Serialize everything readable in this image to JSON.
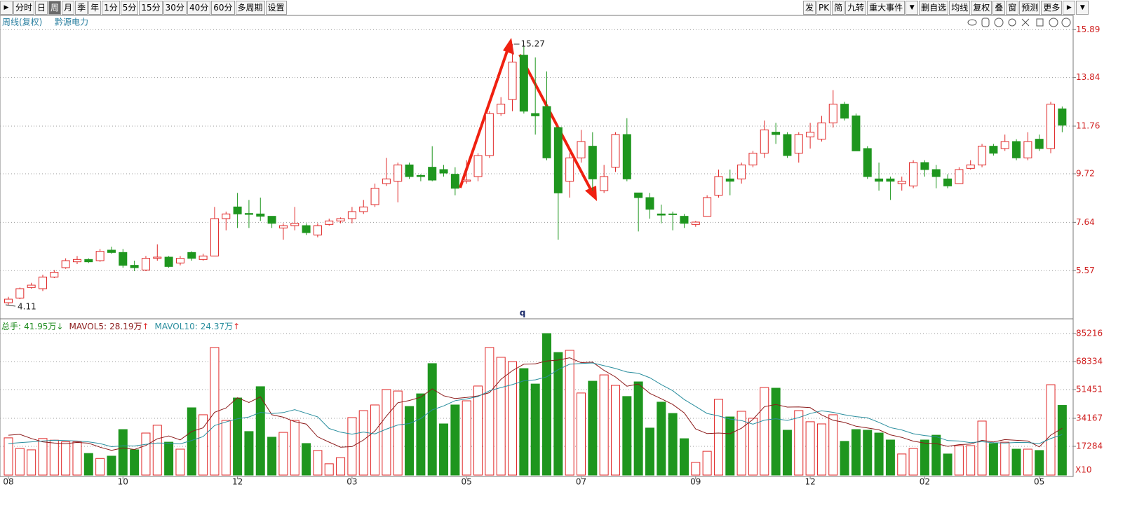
{
  "toolbar": {
    "left": [
      "分时",
      "日",
      "周",
      "月",
      "季",
      "年",
      "1分",
      "5分",
      "15分",
      "30分",
      "40分",
      "60分",
      "多周期",
      "设置"
    ],
    "selected": 2,
    "right": [
      "发",
      "PK",
      "简",
      "九转",
      "重大事件",
      "删自选",
      "均线",
      "复权",
      "叠",
      "窗",
      "预测",
      "更多"
    ]
  },
  "header": {
    "period": "周线(复权)",
    "stock": "黔源电力"
  },
  "chart_data": [
    {
      "type": "candlestick",
      "up_color": "#e02828",
      "down_color": "#1e961e",
      "ylim": [
        3.6,
        16.5
      ],
      "yticks": [
        5.57,
        7.64,
        9.72,
        11.76,
        13.84,
        15.89
      ],
      "grid": true,
      "annotations": [
        "q"
      ],
      "open": [
        4.2,
        4.4,
        4.85,
        4.8,
        5.3,
        5.7,
        5.95,
        6.05,
        6.0,
        6.45,
        6.35,
        5.8,
        5.6,
        6.1,
        6.15,
        5.9,
        6.35,
        6.05,
        6.2,
        7.8,
        8.3,
        8.02,
        8.0,
        7.9,
        7.4,
        7.5,
        7.5,
        7.1,
        7.55,
        7.7,
        7.8,
        8.1,
        8.4,
        9.3,
        9.4,
        10.1,
        9.65,
        10.0,
        9.9,
        9.7,
        9.4,
        9.6,
        10.5,
        12.3,
        12.9,
        14.8,
        12.3,
        12.6,
        11.7,
        9.4,
        10.4,
        10.9,
        9.0,
        10.0,
        11.4,
        8.9,
        8.7,
        8.0,
        8.0,
        7.9,
        7.55,
        7.9,
        8.8,
        9.5,
        9.5,
        10.1,
        10.6,
        11.5,
        11.4,
        10.6,
        11.3,
        11.2,
        11.9,
        12.7,
        12.2,
        10.8,
        9.5,
        9.5,
        9.3,
        9.2,
        10.2,
        9.9,
        9.5,
        9.3,
        9.95,
        10.1,
        10.9,
        10.8,
        11.1,
        10.4,
        11.2,
        10.8,
        12.5
      ],
      "high": [
        4.45,
        4.85,
        5.05,
        5.4,
        5.6,
        6.1,
        6.2,
        6.1,
        6.5,
        6.6,
        6.5,
        6.0,
        6.2,
        6.7,
        6.2,
        6.2,
        6.4,
        6.3,
        8.3,
        8.1,
        8.9,
        8.6,
        8.7,
        7.9,
        7.6,
        8.3,
        7.6,
        7.6,
        7.8,
        7.85,
        8.3,
        8.6,
        9.3,
        10.4,
        10.2,
        10.2,
        9.7,
        10.9,
        10.1,
        10.0,
        10.3,
        10.6,
        12.4,
        13.0,
        15.27,
        15.2,
        14.7,
        14.1,
        11.7,
        10.6,
        11.6,
        11.5,
        10.1,
        11.5,
        12.1,
        8.9,
        8.9,
        8.4,
        8.1,
        8.0,
        7.7,
        8.8,
        9.9,
        9.9,
        10.2,
        10.7,
        12.0,
        11.9,
        11.5,
        11.5,
        11.9,
        12.2,
        13.3,
        12.8,
        12.3,
        10.9,
        10.2,
        9.6,
        9.6,
        10.3,
        10.3,
        10.1,
        9.7,
        10.0,
        10.3,
        11.0,
        11.0,
        11.4,
        11.2,
        11.5,
        11.4,
        12.8,
        12.6
      ],
      "low": [
        4.11,
        4.35,
        4.8,
        4.7,
        5.25,
        5.65,
        5.85,
        5.9,
        5.95,
        6.3,
        5.7,
        5.55,
        5.55,
        6.0,
        5.7,
        5.8,
        6.0,
        6.0,
        6.2,
        7.3,
        7.4,
        7.4,
        7.7,
        7.4,
        6.9,
        7.3,
        7.1,
        7.0,
        7.5,
        7.6,
        7.6,
        8.0,
        8.3,
        9.2,
        8.5,
        9.5,
        9.4,
        9.4,
        9.6,
        8.8,
        9.3,
        9.4,
        10.4,
        12.2,
        12.4,
        12.3,
        11.4,
        10.3,
        6.9,
        8.7,
        10.2,
        9.0,
        8.9,
        9.8,
        9.4,
        7.25,
        7.8,
        7.6,
        7.3,
        7.4,
        7.45,
        7.9,
        8.7,
        8.8,
        9.3,
        10.0,
        10.4,
        11.0,
        10.4,
        10.2,
        10.8,
        11.1,
        11.7,
        12.0,
        10.7,
        9.5,
        9.0,
        8.6,
        9.0,
        9.1,
        9.6,
        9.1,
        9.1,
        9.3,
        9.9,
        10.0,
        10.5,
        10.7,
        10.3,
        10.3,
        10.7,
        10.6,
        11.5
      ],
      "close": [
        4.35,
        4.8,
        4.95,
        5.3,
        5.5,
        6.0,
        6.05,
        5.95,
        6.4,
        6.35,
        5.8,
        5.7,
        6.1,
        6.15,
        5.75,
        6.1,
        6.1,
        6.2,
        7.8,
        8.0,
        8.0,
        7.98,
        7.9,
        7.6,
        7.5,
        7.6,
        7.2,
        7.5,
        7.7,
        7.8,
        8.1,
        8.3,
        9.1,
        9.5,
        10.1,
        9.6,
        9.6,
        9.45,
        9.75,
        9.1,
        9.45,
        10.5,
        12.3,
        12.7,
        14.5,
        12.4,
        12.2,
        10.4,
        8.9,
        10.4,
        11.1,
        9.5,
        9.6,
        11.4,
        9.5,
        8.7,
        8.2,
        7.95,
        7.98,
        7.6,
        7.65,
        8.7,
        9.6,
        9.4,
        10.1,
        10.6,
        11.6,
        11.4,
        10.5,
        11.4,
        11.5,
        11.9,
        12.7,
        12.1,
        10.7,
        9.6,
        9.4,
        9.4,
        9.4,
        10.2,
        9.9,
        9.6,
        9.2,
        9.9,
        10.1,
        10.9,
        10.6,
        11.1,
        10.4,
        11.1,
        10.8,
        12.7,
        11.8
      ]
    },
    {
      "type": "bar",
      "ylim": [
        0,
        92800
      ],
      "yticks": [
        17284,
        34167,
        51451,
        68334,
        85216
      ],
      "grid": true,
      "unit_note": "X10",
      "categories": [
        "08",
        null,
        null,
        null,
        null,
        null,
        null,
        null,
        null,
        null,
        "10",
        null,
        null,
        null,
        null,
        null,
        null,
        null,
        null,
        null,
        "12",
        null,
        null,
        null,
        null,
        null,
        null,
        null,
        null,
        null,
        "03",
        null,
        null,
        null,
        null,
        null,
        null,
        null,
        null,
        null,
        "05",
        null,
        null,
        null,
        null,
        null,
        null,
        null,
        null,
        null,
        "07",
        null,
        null,
        null,
        null,
        null,
        null,
        null,
        null,
        null,
        "09",
        null,
        null,
        null,
        null,
        null,
        null,
        null,
        null,
        null,
        "12",
        null,
        null,
        null,
        null,
        null,
        null,
        null,
        null,
        null,
        "02",
        null,
        null,
        null,
        null,
        null,
        null,
        null,
        null,
        null,
        "05",
        null,
        null
      ],
      "series": [
        {
          "name": "总手",
          "label": "41.95万",
          "trend": "↓",
          "color": "#1e8c1e",
          "type": "bar",
          "values": [
            22400,
            16000,
            15200,
            22000,
            21000,
            20000,
            20000,
            13000,
            10000,
            11400,
            27400,
            15200,
            25300,
            30000,
            19800,
            15600,
            40500,
            36300,
            76800,
            32900,
            46400,
            26200,
            53200,
            22800,
            25700,
            32900,
            19000,
            14800,
            6800,
            10500,
            34600,
            38800,
            42200,
            51500,
            50600,
            41300,
            48900,
            67100,
            30800,
            42200,
            44700,
            53600,
            76800,
            70900,
            68300,
            64100,
            54800,
            85200,
            73800,
            75100,
            49400,
            56500,
            60300,
            54000,
            47300,
            56100,
            28300,
            43900,
            37100,
            21900,
            7600,
            14300,
            45600,
            35000,
            38400,
            34200,
            52700,
            52300,
            27000,
            38800,
            32100,
            30800,
            36300,
            20300,
            27400,
            27000,
            25300,
            21100,
            12700,
            16000,
            21100,
            24000,
            12700,
            17700,
            17700,
            32500,
            19000,
            19800,
            15600,
            15600,
            14800,
            54400,
            41950
          ]
        },
        {
          "name": "MAVOL5",
          "label": "28.19万",
          "trend": "↑",
          "color": "#8b1a1a",
          "type": "line",
          "values": [
            24000,
            24500,
            22000,
            20000,
            19320,
            18840,
            19640,
            19200,
            16800,
            14880,
            16360,
            15400,
            17860,
            21860,
            23540,
            21180,
            26240,
            28440,
            37800,
            40420,
            46580,
            43720,
            47100,
            36300,
            34860,
            32160,
            30720,
            23040,
            19840,
            16800,
            17140,
            21100,
            26580,
            35520,
            43540,
            44880,
            46900,
            51880,
            47740,
            46060,
            46740,
            47680,
            49620,
            57640,
            62860,
            66740,
            66980,
            68660,
            69240,
            70600,
            67660,
            68000,
            63020,
            59060,
            53500,
            54840,
            49200,
            45920,
            42540,
            37460,
            27760,
            24960,
            25300,
            24880,
            28180,
            33500,
            41180,
            42520,
            40920,
            41000,
            40580,
            36200,
            33000,
            31660,
            29380,
            28360,
            27260,
            24220,
            22700,
            20420,
            19240,
            18980,
            17300,
            18300,
            18640,
            20920,
            19920,
            21340,
            20920,
            20500,
            16960,
            24040,
            28190
          ]
        },
        {
          "name": "MAVOL10",
          "label": "24.37万",
          "trend": "↑",
          "color": "#2a8e9e",
          "type": "line",
          "values": [
            19000,
            19500,
            20000,
            20500,
            21000,
            20800,
            20500,
            20000,
            19000,
            17100,
            17600,
            17520,
            18530,
            19330,
            19210,
            18770,
            20820,
            23150,
            29830,
            31980,
            33880,
            34980,
            37770,
            37050,
            37640,
            39370,
            37220,
            35070,
            28070,
            25830,
            24650,
            25910,
            24810,
            27680,
            30170,
            31010,
            34000,
            39230,
            41630,
            44800,
            45810,
            47290,
            50750,
            52690,
            54460,
            56740,
            57330,
            59140,
            63440,
            66730,
            67200,
            67490,
            65840,
            64150,
            62050,
            61250,
            58600,
            54470,
            50800,
            45480,
            41300,
            37080,
            35610,
            33710,
            32820,
            30630,
            33070,
            33910,
            32900,
            34590,
            37040,
            38690,
            37760,
            36290,
            35190,
            34470,
            31730,
            28610,
            27180,
            24900,
            23800,
            23120,
            20760,
            20500,
            19530,
            20080,
            19450,
            19320,
            19610,
            19570,
            18940,
            21980,
            24370
          ]
        }
      ]
    }
  ]
}
